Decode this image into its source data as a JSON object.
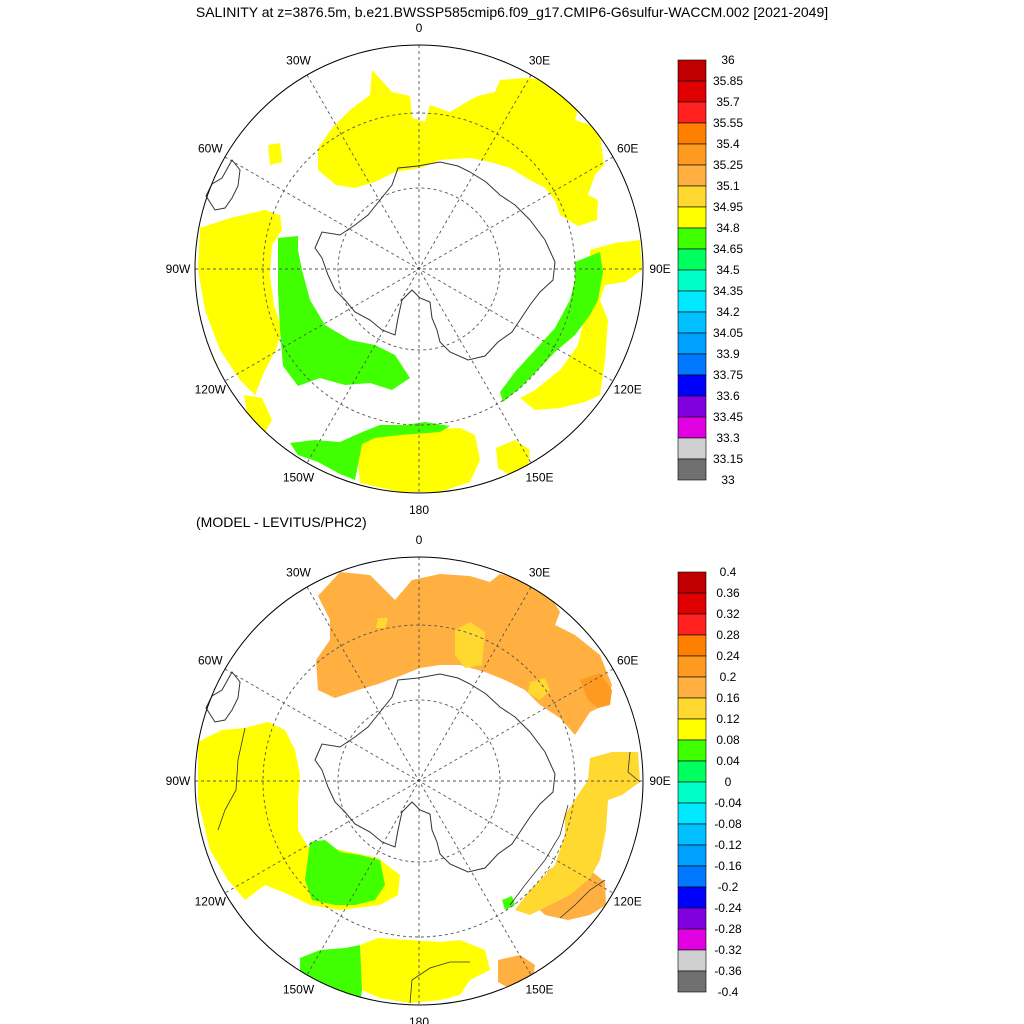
{
  "title": "SALINITY at z=3876.5m, b.e21.BWSSP585cmip6.f09_g17.CMIP6-G6sulfur-WACCM.002 [2021-2049]",
  "subtitle": "(MODEL - LEVITUS/PHC2)",
  "longitude_labels": [
    "0",
    "30E",
    "60E",
    "90E",
    "120E",
    "150E",
    "180",
    "150W",
    "120W",
    "90W",
    "60W",
    "30W"
  ],
  "colorbars": [
    {
      "levels": [
        "36",
        "35.85",
        "35.7",
        "35.55",
        "35.4",
        "35.25",
        "35.1",
        "34.95",
        "34.8",
        "34.65",
        "34.5",
        "34.35",
        "34.2",
        "34.05",
        "33.9",
        "33.75",
        "33.6",
        "33.45",
        "33.3",
        "33.15",
        "33"
      ],
      "colors": [
        "#c00000",
        "#e00000",
        "#ff2020",
        "#ff8000",
        "#ff9a20",
        "#ffb040",
        "#ffd830",
        "#ffff00",
        "#40ff00",
        "#00ff60",
        "#00ffc8",
        "#00e8ff",
        "#00c0ff",
        "#00a0ff",
        "#0078ff",
        "#0000ff",
        "#8000e0",
        "#e000e0",
        "#d0d0d0",
        "#707070"
      ]
    },
    {
      "levels": [
        "0.4",
        "0.36",
        "0.32",
        "0.28",
        "0.24",
        "0.2",
        "0.16",
        "0.12",
        "0.08",
        "0.04",
        "0",
        "-0.04",
        "-0.08",
        "-0.12",
        "-0.16",
        "-0.2",
        "-0.24",
        "-0.28",
        "-0.32",
        "-0.36",
        "-0.4"
      ],
      "colors": [
        "#c00000",
        "#e00000",
        "#ff2020",
        "#ff8000",
        "#ff9a20",
        "#ffb040",
        "#ffd830",
        "#ffff00",
        "#40ff00",
        "#00ff60",
        "#00ffc8",
        "#00e8ff",
        "#00c0ff",
        "#00a0ff",
        "#0078ff",
        "#0000ff",
        "#8000e0",
        "#e000e0",
        "#d0d0d0",
        "#707070"
      ]
    }
  ]
}
